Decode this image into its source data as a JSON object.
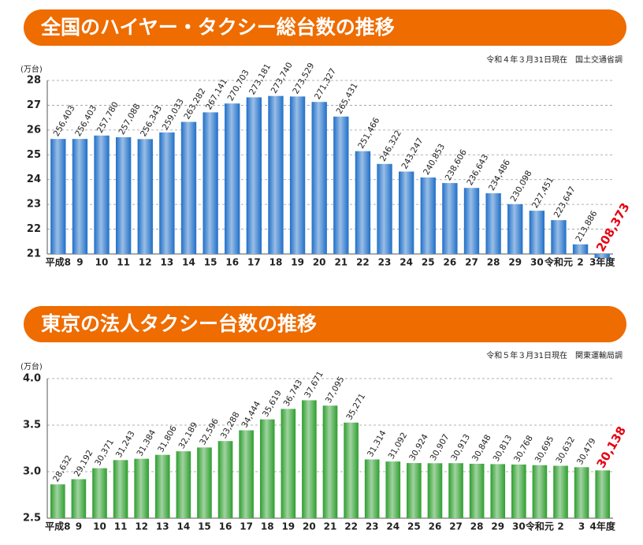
{
  "chart_data": [
    {
      "type": "bar",
      "title": "全国のハイヤー・タクシー総台数の推移",
      "source": "令和４年３月31日現在　国土交通省調",
      "ylabel": "(万台)",
      "categories": [
        "平成8",
        "9",
        "10",
        "11",
        "12",
        "13",
        "14",
        "15",
        "16",
        "17",
        "18",
        "19",
        "20",
        "21",
        "22",
        "23",
        "24",
        "25",
        "26",
        "27",
        "28",
        "29",
        "30",
        "令和元",
        "2",
        "3年度"
      ],
      "values": [
        25.6403,
        25.6403,
        25.778,
        25.7088,
        25.6343,
        25.9033,
        26.3282,
        26.7141,
        27.0703,
        27.3181,
        27.374,
        27.3529,
        27.1327,
        26.5431,
        25.1466,
        24.6322,
        24.3247,
        24.0853,
        23.8606,
        23.6643,
        23.4486,
        23.0098,
        22.7451,
        22.3647,
        21.3886,
        20.8373
      ],
      "value_labels": [
        "256,403",
        "256,403",
        "257,780",
        "257,088",
        "256,343",
        "259,033",
        "263,282",
        "267,141",
        "270,703",
        "273,181",
        "273,740",
        "273,529",
        "271,327",
        "265,431",
        "251,466",
        "246,322",
        "243,247",
        "240,853",
        "238,606",
        "236,643",
        "234,486",
        "230,098",
        "227,451",
        "223,647",
        "213,886",
        "208,373"
      ],
      "color": "#1f6fc8",
      "highlight": {
        "index": 25,
        "color": "#e60012"
      },
      "ylim": [
        21,
        28
      ],
      "yticks": [
        21,
        22,
        23,
        24,
        25,
        26,
        27,
        28
      ],
      "grid": true
    },
    {
      "type": "bar",
      "title": "東京の法人タクシー台数の推移",
      "source": "令和５年３月31日現在　関東運輸局調",
      "ylabel": "(万台)",
      "categories": [
        "平成8",
        "9",
        "10",
        "11",
        "12",
        "13",
        "14",
        "15",
        "16",
        "17",
        "18",
        "19",
        "20",
        "21",
        "22",
        "23",
        "24",
        "25",
        "26",
        "27",
        "28",
        "29",
        "30",
        "令和元",
        "2",
        "3",
        "4年度"
      ],
      "values": [
        2.8632,
        2.9192,
        3.0371,
        3.1243,
        3.1384,
        3.1806,
        3.2189,
        3.2596,
        3.3288,
        3.4444,
        3.5619,
        3.6743,
        3.7671,
        3.7095,
        3.5271,
        3.1314,
        3.1092,
        3.0924,
        3.0907,
        3.0913,
        3.0848,
        3.0813,
        3.0768,
        3.0695,
        3.0632,
        3.0479,
        3.0138
      ],
      "value_labels": [
        "28,632",
        "29,192",
        "30,371",
        "31,243",
        "31,384",
        "31,806",
        "32,189",
        "32,596",
        "33,288",
        "34,444",
        "35,619",
        "36,743",
        "37,671",
        "37,095",
        "35,271",
        "31,314",
        "31,092",
        "30,924",
        "30,907",
        "30,913",
        "30,848",
        "30,813",
        "30,768",
        "30,695",
        "30,632",
        "30,479",
        "30,138"
      ],
      "color": "#2e9e2e",
      "highlight": {
        "index": 26,
        "color": "#e60012"
      },
      "ylim": [
        2.5,
        4.0
      ],
      "yticks": [
        2.5,
        {
          "value": 3,
          "label": "3.0"
        },
        3.5,
        {
          "value": 4,
          "label": "4.0"
        }
      ],
      "grid": true
    }
  ]
}
